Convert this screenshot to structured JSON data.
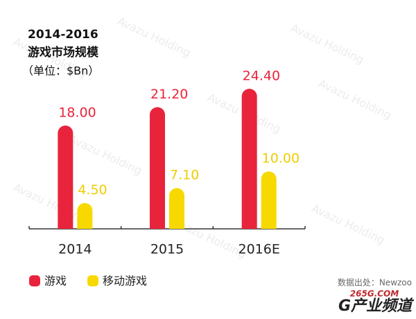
{
  "chart_data": {
    "type": "bar",
    "title": "2014-2016",
    "subtitle": "游戏市场规模",
    "unit_label": "（单位：$Bn）",
    "categories": [
      "2014",
      "2015",
      "2016E"
    ],
    "series": [
      {
        "name": "游戏",
        "color": "#e8243c",
        "values": [
          18,
          21.2,
          24.4
        ],
        "value_labels": [
          "18.00",
          "21.20",
          "24.40"
        ]
      },
      {
        "name": "移动游戏",
        "color": "#f7d900",
        "values": [
          4.5,
          7.1,
          10
        ],
        "value_labels": [
          "4.50",
          "7.10",
          "10.00"
        ]
      }
    ],
    "legend": "bottom-left",
    "source": "数据出处：Newzoo",
    "watermark": "Avazu Holding",
    "logo_top": "265G.COM",
    "logo_bottom": "G产业频道"
  }
}
